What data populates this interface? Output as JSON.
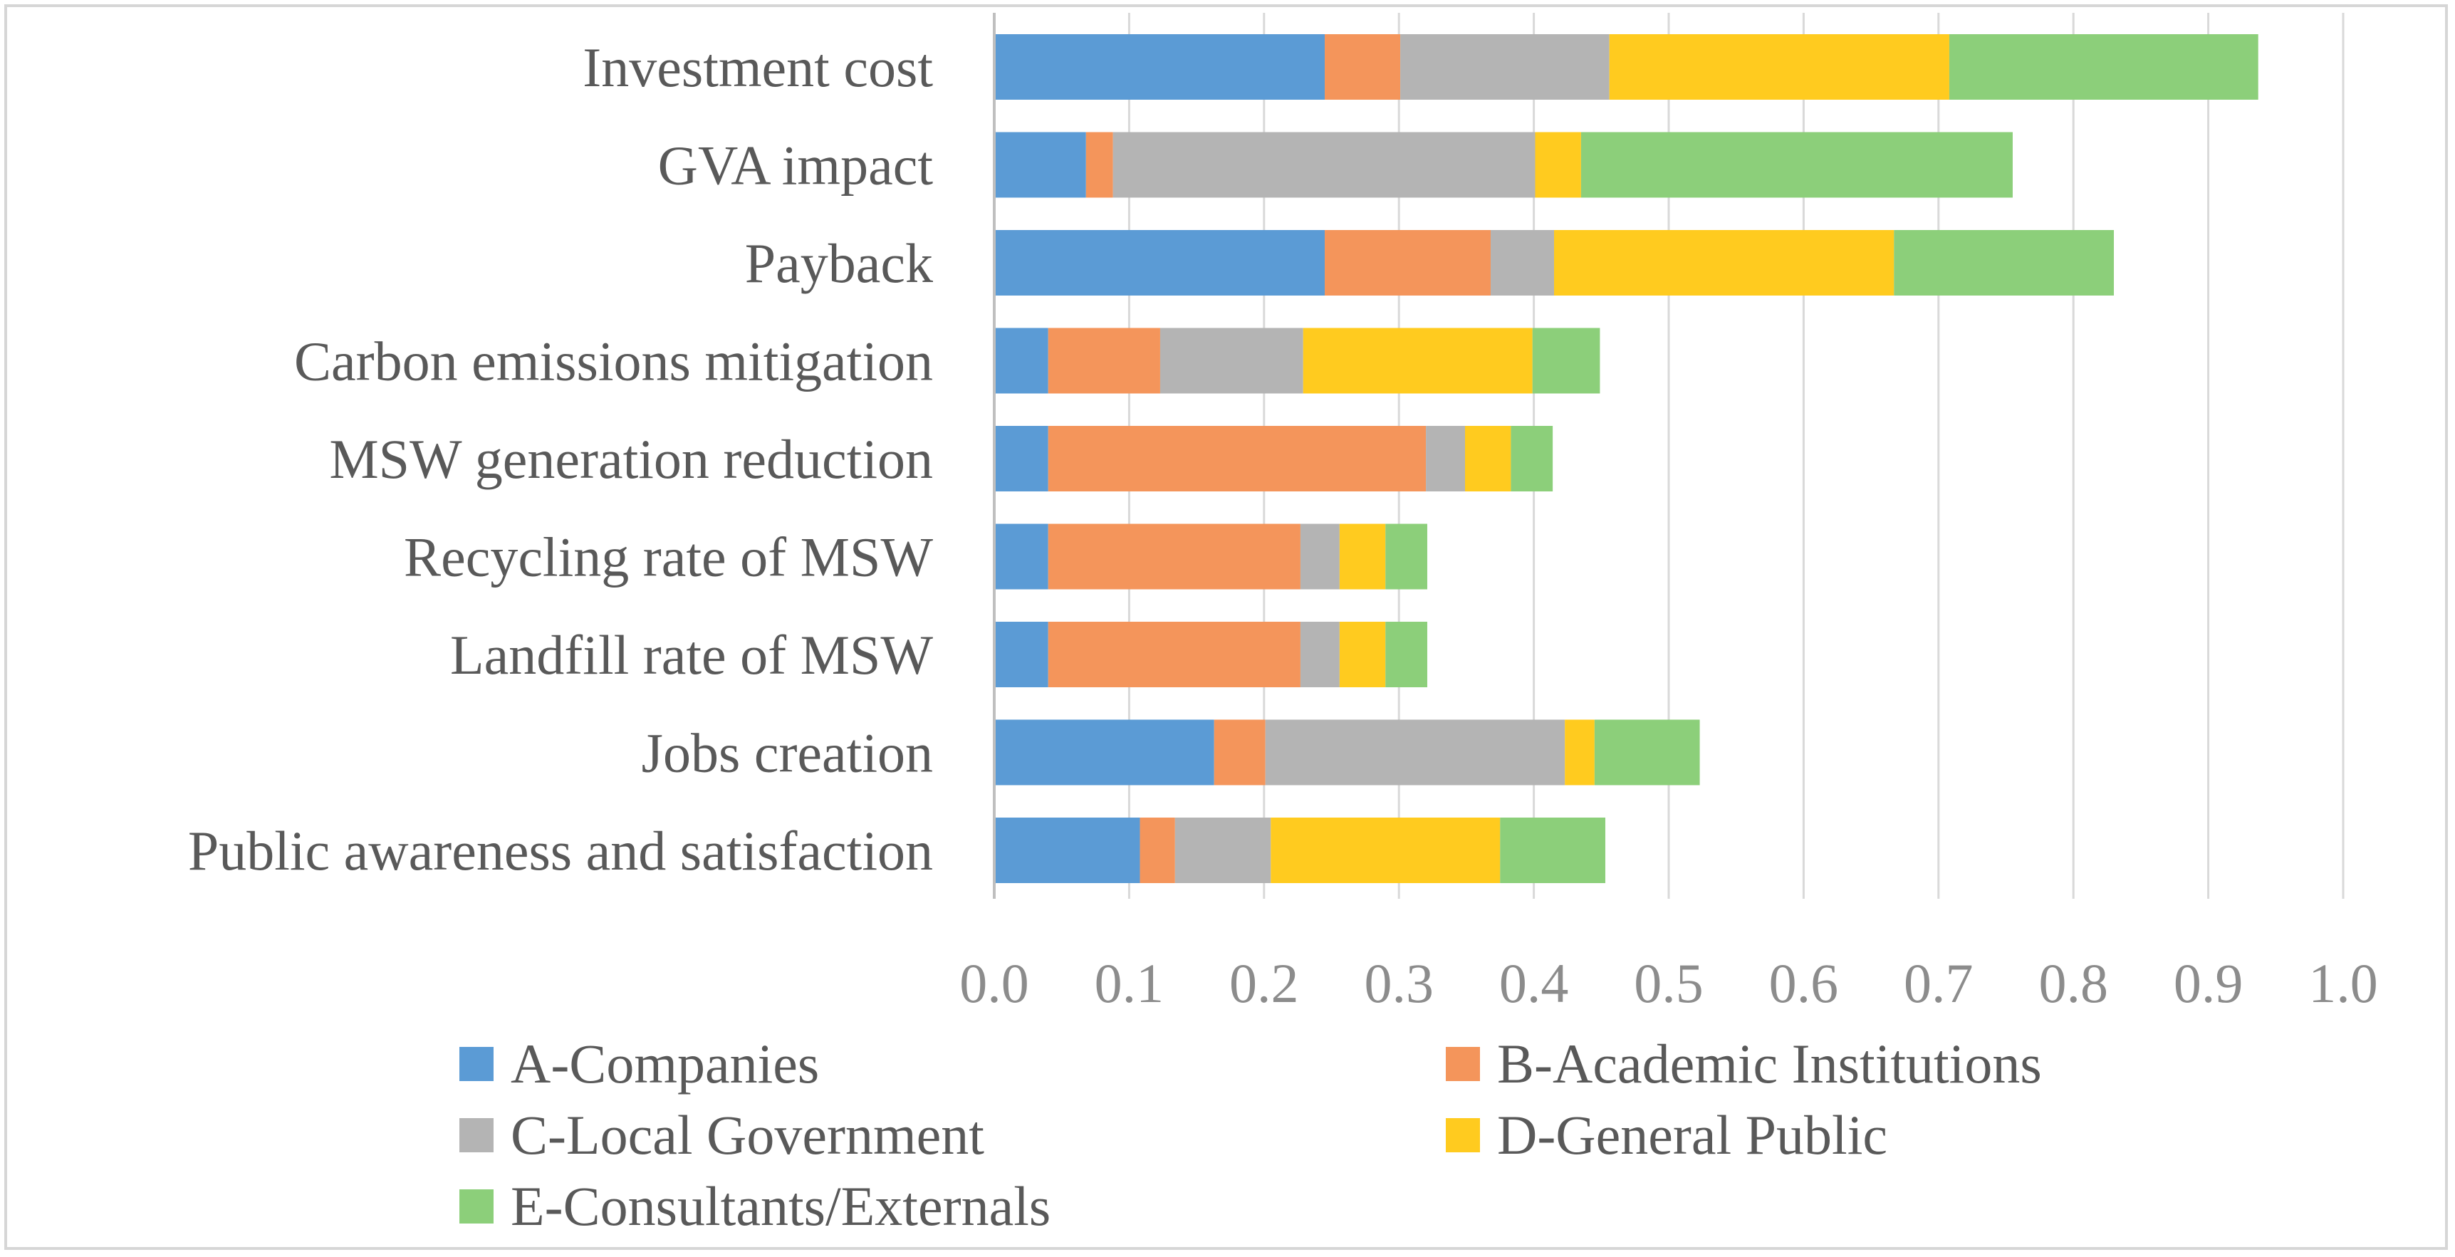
{
  "chart_data": {
    "type": "bar",
    "orientation": "horizontal",
    "stacked": true,
    "title": "",
    "xlabel": "",
    "ylabel": "",
    "xlim": [
      0,
      1.0
    ],
    "xticks": [
      "0.0",
      "0.1",
      "0.2",
      "0.3",
      "0.4",
      "0.5",
      "0.6",
      "0.7",
      "0.8",
      "0.9",
      "1.0"
    ],
    "grid": true,
    "legend_position": "bottom",
    "categories": [
      "Investment cost",
      "GVA impact",
      "Payback",
      "Carbon emissions mitigation",
      "MSW generation reduction",
      "Recycling rate of MSW",
      "Landfill rate of MSW",
      "Jobs creation",
      "Public awareness and satisfaction"
    ],
    "series": [
      {
        "name": "A-Companies",
        "color": "#5b9bd5",
        "values": [
          0.245,
          0.068,
          0.245,
          0.04,
          0.04,
          0.04,
          0.04,
          0.163,
          0.108
        ]
      },
      {
        "name": "B-Academic Institutions",
        "color": "#f4955b",
        "values": [
          0.056,
          0.02,
          0.123,
          0.083,
          0.28,
          0.187,
          0.187,
          0.038,
          0.026
        ]
      },
      {
        "name": "C-Local Government",
        "color": "#b4b4b4",
        "values": [
          0.155,
          0.313,
          0.047,
          0.106,
          0.029,
          0.029,
          0.029,
          0.222,
          0.071
        ]
      },
      {
        "name": "D-General Public",
        "color": "#ffcb1f",
        "values": [
          0.252,
          0.034,
          0.252,
          0.17,
          0.034,
          0.034,
          0.034,
          0.022,
          0.17
        ]
      },
      {
        "name": "E-Consultants/Externals",
        "color": "#8ccf7a",
        "values": [
          0.229,
          0.32,
          0.163,
          0.05,
          0.031,
          0.031,
          0.031,
          0.078,
          0.078
        ]
      }
    ]
  }
}
